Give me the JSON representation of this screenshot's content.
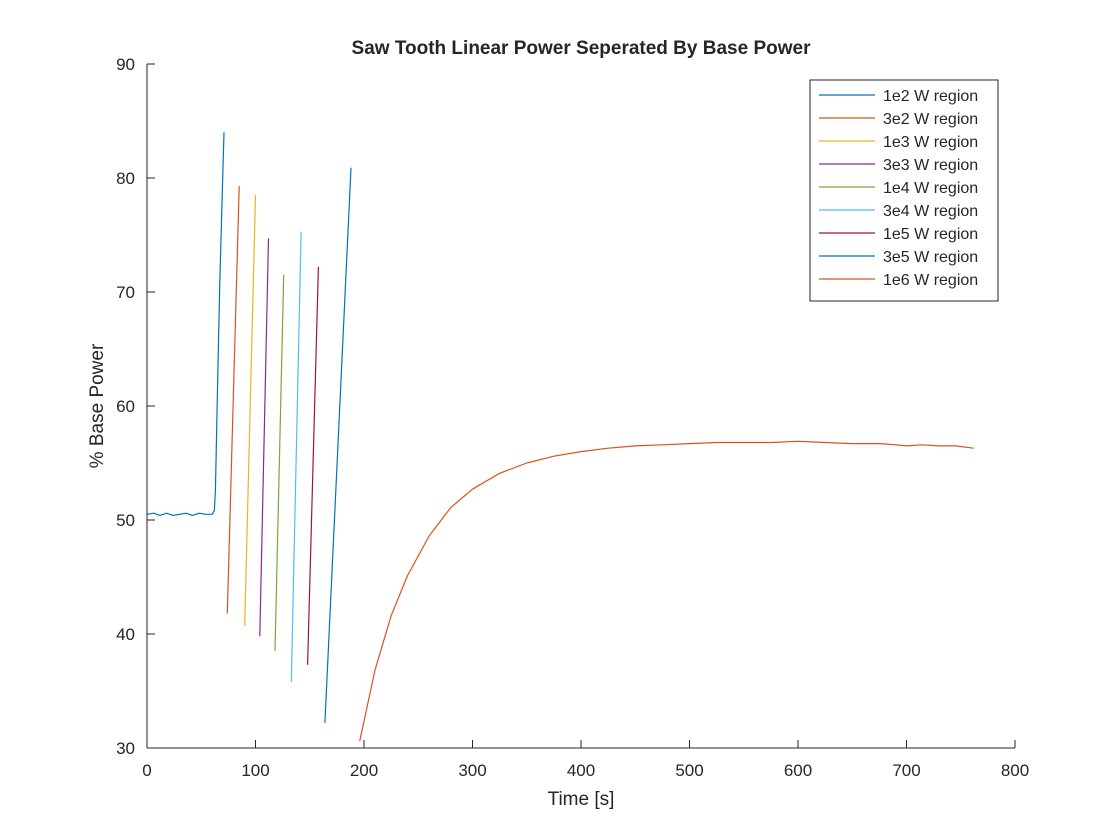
{
  "chart_data": {
    "type": "line",
    "title": "Saw Tooth Linear Power Seperated By Base Power",
    "xlabel": "Time [s]",
    "ylabel": "% Base Power",
    "xlim": [
      0,
      800
    ],
    "ylim": [
      30,
      90
    ],
    "xticks": [
      0,
      100,
      200,
      300,
      400,
      500,
      600,
      700,
      800
    ],
    "xtick_labels": [
      "0",
      "100",
      "200",
      "300",
      "400",
      "500",
      "600",
      "700",
      "800"
    ],
    "yticks": [
      30,
      40,
      50,
      60,
      70,
      80,
      90
    ],
    "ytick_labels": [
      "30",
      "40",
      "50",
      "60",
      "70",
      "80",
      "90"
    ],
    "grid": false,
    "legend_position": "top-right",
    "series": [
      {
        "name": "1e2 W region",
        "color": "#0072BD",
        "x": [
          0,
          6,
          12,
          18,
          24,
          30,
          36,
          42,
          48,
          54,
          60,
          62,
          63,
          65,
          67,
          69,
          71
        ],
        "y": [
          50.5,
          50.6,
          50.4,
          50.6,
          50.4,
          50.5,
          50.6,
          50.4,
          50.6,
          50.5,
          50.5,
          50.8,
          52.5,
          61.5,
          70.5,
          77.5,
          84
        ]
      },
      {
        "name": "3e2 W region",
        "color": "#D95319",
        "x": [
          74,
          85
        ],
        "y": [
          41.8,
          79.3
        ]
      },
      {
        "name": "1e3 W region",
        "color": "#EDB120",
        "x": [
          90,
          100
        ],
        "y": [
          40.7,
          78.5
        ]
      },
      {
        "name": "3e3 W region",
        "color": "#7E2F8E",
        "x": [
          104,
          112
        ],
        "y": [
          39.8,
          74.7
        ]
      },
      {
        "name": "1e4 W region",
        "color": "#77AC30",
        "x": [
          118,
          126
        ],
        "y": [
          38.5,
          71.5
        ]
      },
      {
        "name": "3e4 W region",
        "color": "#4DBEEE",
        "x": [
          133,
          142
        ],
        "y": [
          35.8,
          75.3
        ]
      },
      {
        "name": "1e5 W region",
        "color": "#A2142F",
        "x": [
          148,
          158
        ],
        "y": [
          37.3,
          72.2
        ]
      },
      {
        "name": "3e5 W region",
        "color": "#0072BD",
        "x": [
          164,
          188
        ],
        "y": [
          32.2,
          80.9
        ]
      },
      {
        "name": "1e6 W region",
        "color": "#D95319",
        "x": [
          196,
          210,
          225,
          240,
          260,
          280,
          300,
          325,
          350,
          375,
          400,
          425,
          450,
          475,
          500,
          525,
          550,
          575,
          600,
          625,
          650,
          675,
          690,
          700,
          715,
          730,
          745,
          762
        ],
        "y": [
          30.6,
          36.8,
          41.6,
          45.1,
          48.6,
          51.1,
          52.7,
          54.1,
          55.0,
          55.6,
          56.0,
          56.3,
          56.5,
          56.6,
          56.7,
          56.8,
          56.8,
          56.8,
          56.9,
          56.8,
          56.7,
          56.7,
          56.6,
          56.5,
          56.6,
          56.5,
          56.5,
          56.3
        ]
      }
    ]
  }
}
